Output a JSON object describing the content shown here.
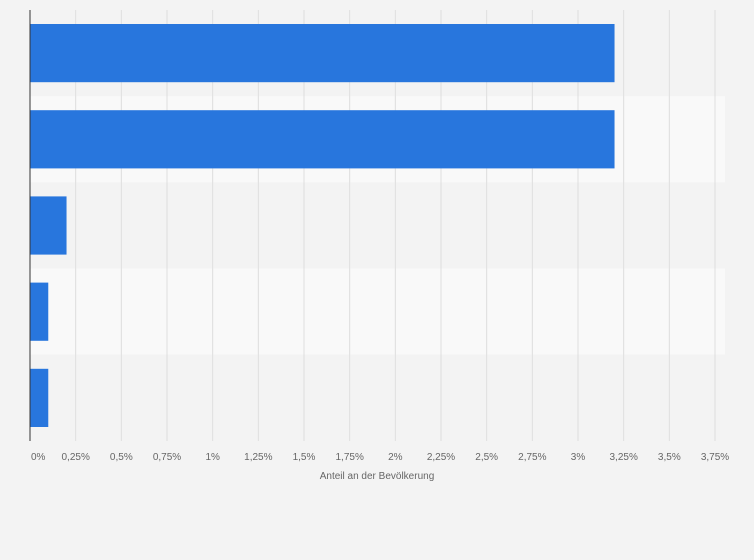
{
  "chart_data": {
    "type": "bar",
    "orientation": "horizontal",
    "categories": [
      "",
      "",
      "",
      "",
      ""
    ],
    "values": [
      3.2,
      3.2,
      0.2,
      0.1,
      0.1
    ],
    "title": "",
    "xlabel": "Anteil an der Bevölkerung",
    "ylabel": "",
    "xlim": [
      0,
      3.75
    ],
    "x_ticks": [
      0,
      0.25,
      0.5,
      0.75,
      1,
      1.25,
      1.5,
      1.75,
      2,
      2.25,
      2.5,
      2.75,
      3,
      3.25,
      3.5,
      3.75
    ],
    "x_tick_labels": [
      "0%",
      "0,25%",
      "0,5%",
      "0,75%",
      "1%",
      "1,25%",
      "1,5%",
      "1,75%",
      "2%",
      "2,25%",
      "2,5%",
      "2,75%",
      "3%",
      "3,25%",
      "3,5%",
      "3,75%"
    ],
    "grid": true,
    "legend": "none",
    "colors": {
      "bar": "#2876dd",
      "background": "#f3f3f3",
      "band_light": "#f9f9f9",
      "band_dark": "#f3f3f3",
      "gridline": "#dedede",
      "axis": "#333333",
      "tick_text": "#666666"
    }
  }
}
